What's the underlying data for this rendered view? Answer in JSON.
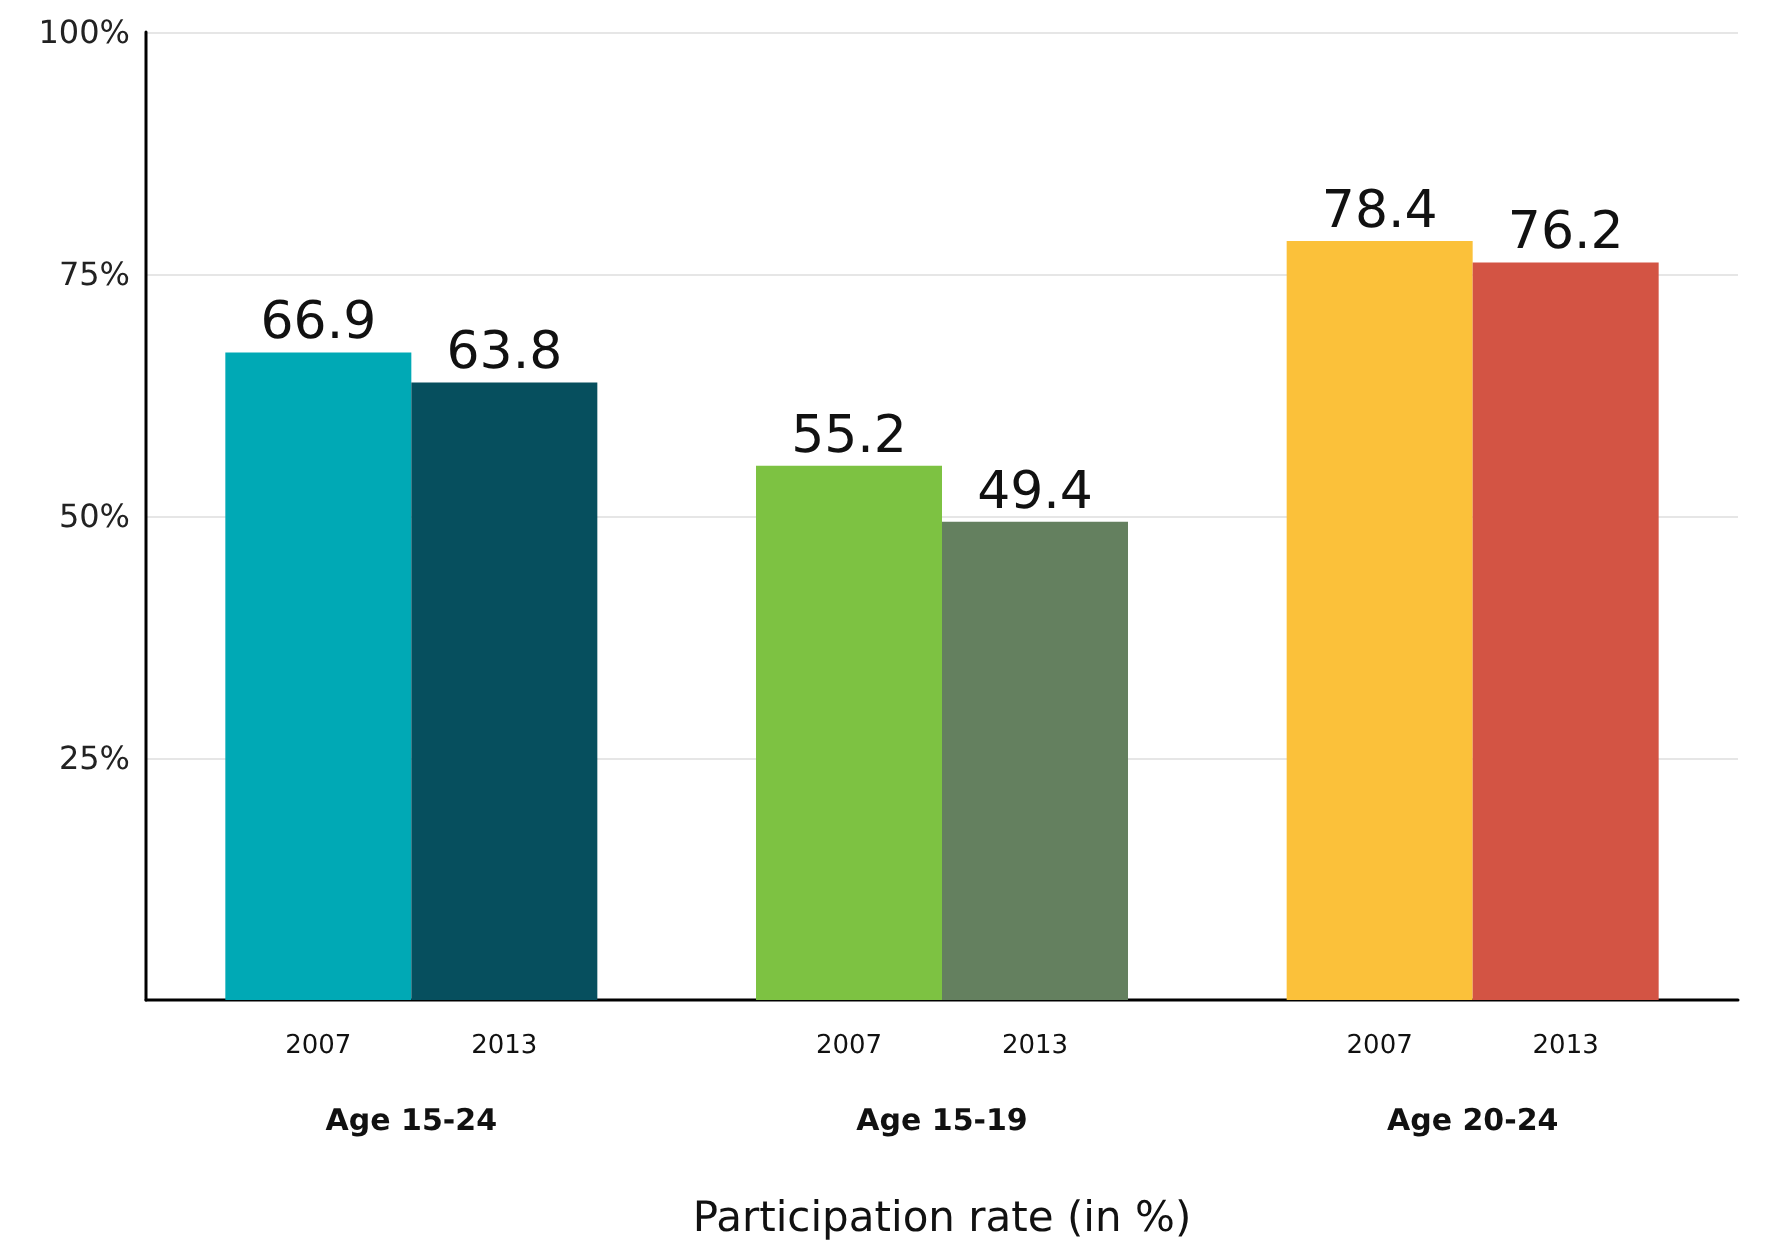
{
  "chart_data": {
    "type": "bar",
    "xlabel": "Participation rate (in %)",
    "categories": [
      "Age 15-24",
      "Age 15-19",
      "Age 20-24"
    ],
    "series": [
      {
        "name": "2007",
        "colors": [
          "#00a9b5",
          "#7dc242",
          "#fbc13a"
        ],
        "values": [
          66.9,
          55.2,
          78.4
        ]
      },
      {
        "name": "2013",
        "colors": [
          "#064f5e",
          "#64805f",
          "#d35444"
        ],
        "values": [
          63.8,
          49.4,
          76.2
        ]
      }
    ],
    "ylim": [
      0,
      100
    ],
    "yticks": [
      {
        "value": 25,
        "label": "25%"
      },
      {
        "value": 50,
        "label": "50%"
      },
      {
        "value": 75,
        "label": "75%"
      },
      {
        "value": 100,
        "label": "100%"
      }
    ],
    "grid": "y",
    "data_labels": true
  }
}
